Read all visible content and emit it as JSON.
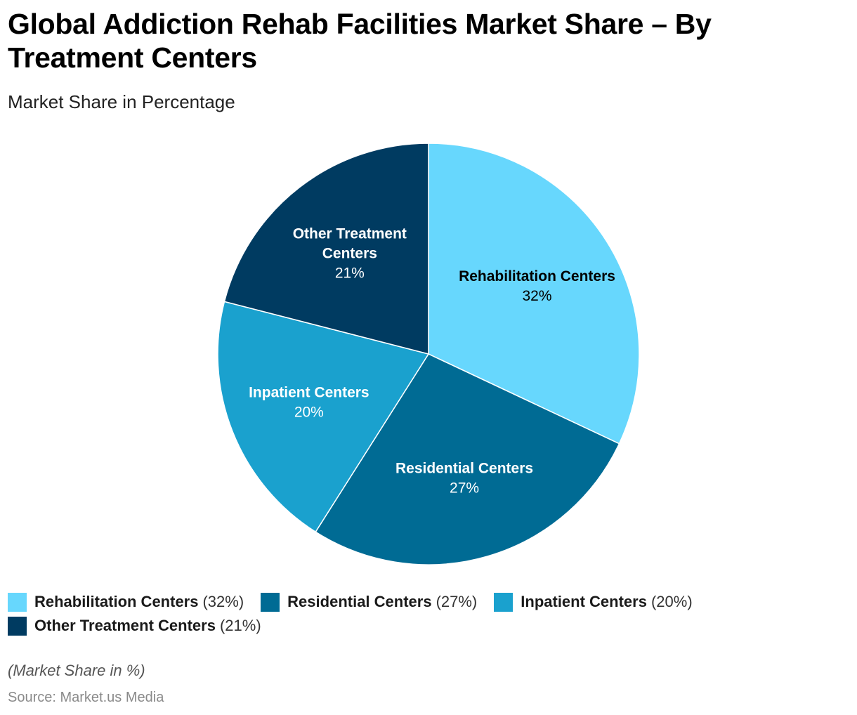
{
  "title": "Global Addiction Rehab Facilities Market Share – By Treatment Centers",
  "subtitle": "Market Share in Percentage",
  "note": "(Market Share in %)",
  "source": "Source: Market.us Media",
  "chart_data": {
    "type": "pie",
    "title": "Global Addiction Rehab Facilities Market Share – By Treatment Centers",
    "subtitle": "Market Share in Percentage",
    "unit": "%",
    "slices": [
      {
        "label": "Rehabilitation Centers",
        "value": 32,
        "color": "#67D7FD",
        "label_color": "#000000",
        "label_lines": [
          "Rehabilitation Centers"
        ]
      },
      {
        "label": "Residential Centers",
        "value": 27,
        "color": "#006B94",
        "label_color": "#FFFFFF",
        "label_lines": [
          "Residential Centers"
        ]
      },
      {
        "label": "Inpatient Centers",
        "value": 20,
        "color": "#1AA1CE",
        "label_color": "#FFFFFF",
        "label_lines": [
          "Inpatient Centers"
        ]
      },
      {
        "label": "Other Treatment Centers",
        "value": 21,
        "color": "#003B61",
        "label_color": "#FFFFFF",
        "label_lines": [
          "Other Treatment",
          "Centers"
        ]
      }
    ],
    "legend_position": "bottom"
  }
}
